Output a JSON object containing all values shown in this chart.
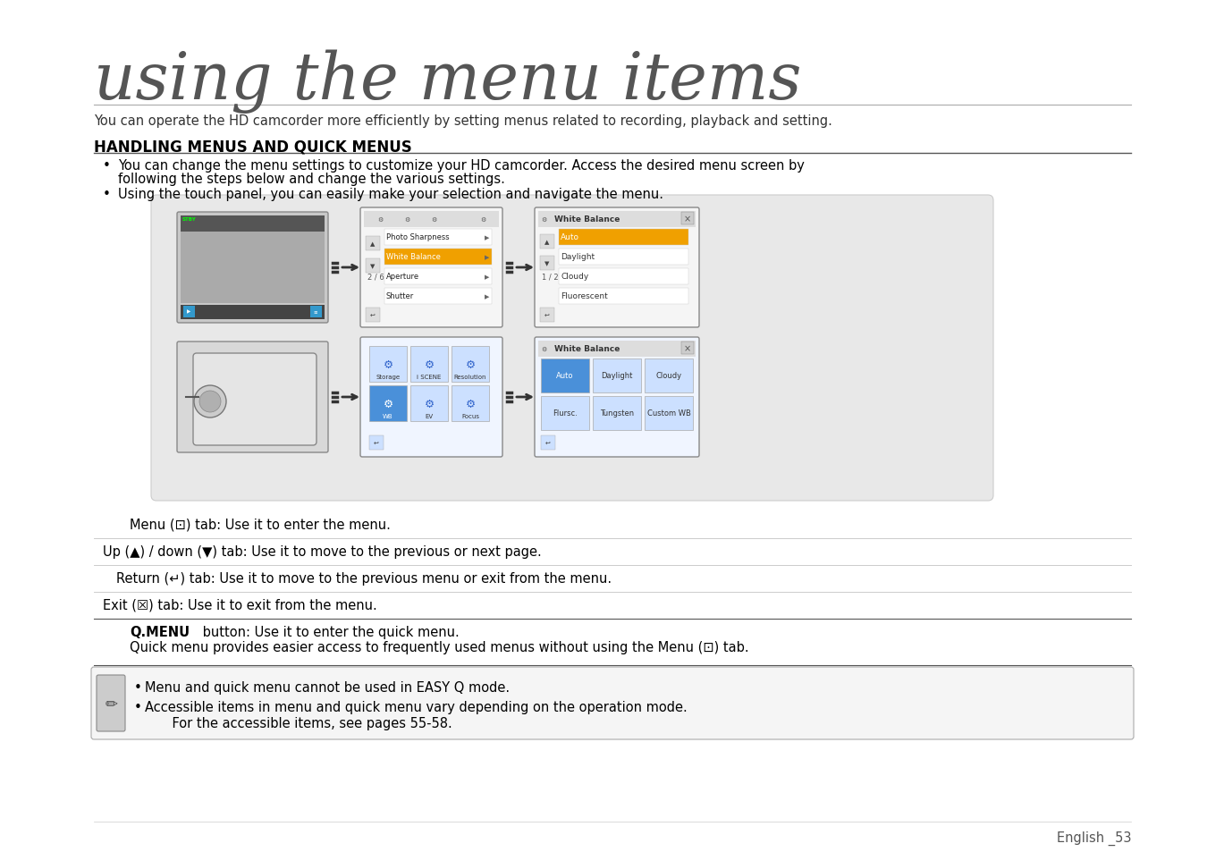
{
  "title": "using the menu items",
  "subtitle": "You can operate the HD camcorder more efficiently by setting menus related to recording, playback and setting.",
  "section_title": "HANDLING MENUS AND QUICK MENUS",
  "bullet1_line1": "You can change the menu settings to customize your HD camcorder. Access the desired menu screen by",
  "bullet1_line2": "following the steps below and change the various settings.",
  "bullet2": "Using the touch panel, you can easily make your selection and navigate the menu.",
  "row1": "Menu (⊡) tab: Use it to enter the menu.",
  "row2": "Up (▲) / down (▼) tab: Use it to move to the previous or next page.",
  "row3": "Return (↵) tab: Use it to move to the previous menu or exit from the menu.",
  "row4": "Exit (☒) tab: Use it to exit from the menu.",
  "row5a": "Q.MENU button: Use it to enter the quick menu.",
  "row5b": "Quick menu provides easier access to frequently used menus without using the Menu (⊡) tab.",
  "note1": "Menu and quick menu cannot be used in EASY Q mode.",
  "note2": "Accessible items in menu and quick menu vary depending on the operation mode.",
  "note3": "    For the accessible items, see pages 55-58.",
  "footer": "English _53",
  "bg_color": "#ffffff",
  "text_color": "#000000",
  "gray_box_color": "#e8e8e8",
  "line_color": "#bbbbbb",
  "title_color": "#555555"
}
